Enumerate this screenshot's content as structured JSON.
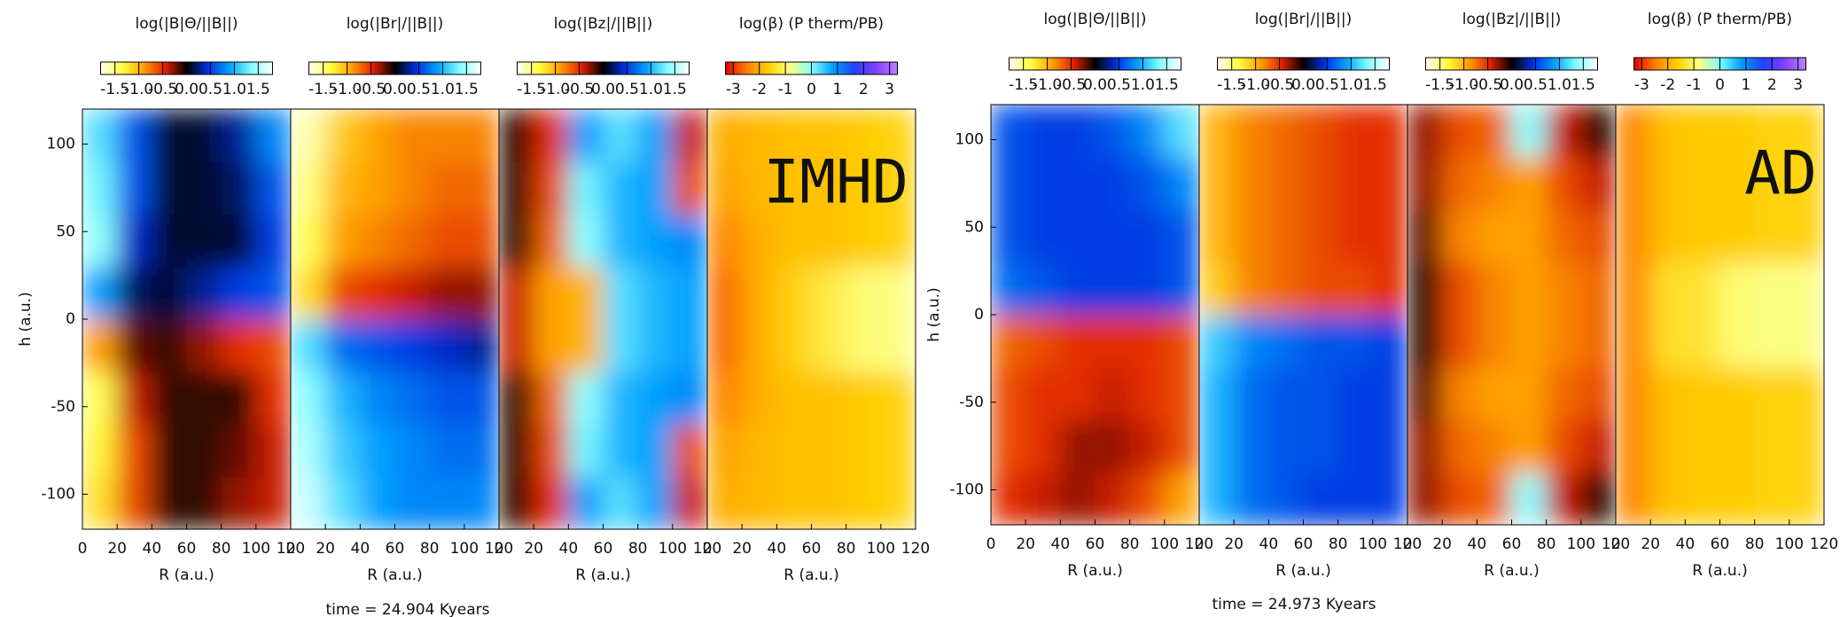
{
  "captions": [
    "time = 24.904 Kyears",
    "time = 24.973 Kyears"
  ],
  "chart_data": [
    {
      "type": "heatmap",
      "title": "log(|B|Θ/||B||)",
      "xlabel": "R (a.u.)",
      "ylabel": "h (a.u.)",
      "xbins": [
        0,
        20,
        40,
        60,
        80,
        100,
        120
      ],
      "ybins": [
        -120,
        -90,
        -60,
        -30,
        0,
        30,
        60,
        90,
        120
      ],
      "xlim": [
        0,
        120
      ],
      "ylim": [
        -120,
        120
      ],
      "xticks": [
        0,
        20,
        40,
        60,
        80,
        100,
        120
      ],
      "yticks": [
        -100,
        -50,
        0,
        50,
        100
      ],
      "clim": [
        -1.8,
        1.8
      ],
      "cticks": [
        -1.5,
        {
          "value": -1,
          "label": "-1.0"
        },
        -0.5,
        {
          "value": 0,
          "label": "0.0"
        },
        0.5,
        {
          "value": 1,
          "label": "1.0"
        },
        1.5
      ],
      "colormap": [
        "#ffffff",
        "#ffff40",
        "#ffa000",
        "#e02000",
        "#000000",
        "#0030e0",
        "#00a0ff",
        "#80ffff",
        "#ffffff"
      ],
      "values": [
        [
          -1.2,
          -0.6,
          -0.1,
          -0.1,
          -0.3,
          -0.4
        ],
        [
          -1.3,
          -0.6,
          -0.1,
          -0.1,
          -0.2,
          -0.4
        ],
        [
          -1.4,
          -0.4,
          -0.1,
          -0.1,
          -0.1,
          -0.5
        ],
        [
          -0.9,
          -0.2,
          -0.1,
          -0.3,
          -0.5,
          -0.6
        ],
        [
          0.9,
          0.2,
          0.1,
          0.3,
          0.5,
          0.6
        ],
        [
          1.4,
          0.4,
          0.1,
          0.1,
          0.1,
          0.5
        ],
        [
          1.3,
          0.6,
          0.1,
          0.1,
          0.2,
          0.6
        ],
        [
          1.2,
          0.6,
          0.1,
          0.1,
          0.3,
          0.8
        ]
      ]
    },
    {
      "type": "heatmap",
      "title": "log(|Br|/||B||)",
      "xlabel": "R (a.u.)",
      "xbins": [
        0,
        20,
        40,
        60,
        80,
        100,
        120
      ],
      "ybins": [
        -120,
        -90,
        -60,
        -30,
        0,
        30,
        60,
        90,
        120
      ],
      "xlim": [
        0,
        120
      ],
      "ylim": [
        -120,
        120
      ],
      "xticks": [
        0,
        20,
        40,
        60,
        80,
        100,
        120
      ],
      "clim": [
        -1.8,
        1.8
      ],
      "cticks": [
        -1.5,
        {
          "value": -1,
          "label": "-1.0"
        },
        -0.5,
        {
          "value": 0,
          "label": "0.0"
        },
        0.5,
        {
          "value": 1,
          "label": "1.0"
        },
        1.5
      ],
      "colormap": [
        "#ffffff",
        "#ffff40",
        "#ffa000",
        "#e02000",
        "#000000",
        "#0030e0",
        "#00a0ff",
        "#80ffff",
        "#ffffff"
      ],
      "values": [
        [
          1.6,
          1.2,
          0.9,
          0.8,
          0.8,
          0.8
        ],
        [
          1.5,
          1.1,
          0.9,
          0.8,
          0.7,
          0.7
        ],
        [
          1.4,
          1.0,
          0.8,
          0.7,
          0.6,
          0.6
        ],
        [
          1.2,
          0.7,
          0.6,
          0.5,
          0.4,
          0.3
        ],
        [
          -1.2,
          -0.6,
          -0.5,
          -0.4,
          -0.3,
          -0.3
        ],
        [
          -1.4,
          -0.9,
          -0.8,
          -0.7,
          -0.6,
          -0.6
        ],
        [
          -1.5,
          -1.0,
          -0.9,
          -0.8,
          -0.7,
          -0.7
        ],
        [
          -1.6,
          -1.1,
          -0.9,
          -0.8,
          -0.8,
          -0.8
        ]
      ]
    },
    {
      "type": "heatmap",
      "title": "log(|Bz|/||B||)",
      "xlabel": "R (a.u.)",
      "xbins": [
        0,
        20,
        40,
        60,
        80,
        100,
        120
      ],
      "ybins": [
        -120,
        -90,
        -60,
        -30,
        0,
        30,
        60,
        90,
        120
      ],
      "xlim": [
        0,
        120
      ],
      "ylim": [
        -120,
        120
      ],
      "xticks": [
        0,
        20,
        40,
        60,
        80,
        100,
        120
      ],
      "clim": [
        -1.8,
        1.8
      ],
      "cticks": [
        -1.5,
        {
          "value": -1,
          "label": "-1.0"
        },
        -0.5,
        {
          "value": 0,
          "label": "0.0"
        },
        0.5,
        {
          "value": 1,
          "label": "1.0"
        },
        1.5
      ],
      "colormap": [
        "#ffffff",
        "#ffff40",
        "#ffa000",
        "#e02000",
        "#000000",
        "#0030e0",
        "#00a0ff",
        "#80ffff",
        "#ffffff"
      ],
      "values": [
        [
          -0.1,
          -0.5,
          0.9,
          1.2,
          0.9,
          -0.4
        ],
        [
          -0.1,
          -0.6,
          1.3,
          1.0,
          0.9,
          -0.6
        ],
        [
          -0.1,
          -0.7,
          1.4,
          1.0,
          0.9,
          0.8
        ],
        [
          -0.4,
          -0.9,
          -1.0,
          1.2,
          1.0,
          0.9
        ],
        [
          -0.4,
          -0.9,
          -1.0,
          1.2,
          1.0,
          0.9
        ],
        [
          -0.1,
          -0.7,
          1.4,
          1.0,
          0.9,
          0.8
        ],
        [
          -0.1,
          -0.6,
          1.3,
          1.0,
          0.9,
          -0.6
        ],
        [
          -0.1,
          -0.5,
          0.9,
          1.2,
          0.9,
          -0.4
        ]
      ]
    },
    {
      "type": "heatmap",
      "title": "log(β) (P therm/PB)",
      "xlabel": "R (a.u.)",
      "annotation": "IMHD",
      "xbins": [
        0,
        20,
        40,
        60,
        80,
        100,
        120
      ],
      "ybins": [
        -120,
        -90,
        -60,
        -30,
        0,
        30,
        60,
        90,
        120
      ],
      "xlim": [
        0,
        120
      ],
      "ylim": [
        -120,
        120
      ],
      "xticks": [
        0,
        20,
        40,
        60,
        80,
        100,
        120
      ],
      "clim": [
        -3.3,
        3.3
      ],
      "cticks": [
        -3,
        -2,
        -1,
        0,
        1,
        2,
        3
      ],
      "colormap": [
        "#e00000",
        "#ff8000",
        "#ffd000",
        "#ffff80",
        "#80ffff",
        "#00a0ff",
        "#2040ff",
        "#8040ff",
        "#c080ff"
      ],
      "values": [
        [
          -2.0,
          -1.9,
          -1.8,
          -1.8,
          -1.7,
          -1.6
        ],
        [
          -2.1,
          -1.9,
          -1.8,
          -1.8,
          -1.7,
          -1.6
        ],
        [
          -2.4,
          -2.0,
          -1.8,
          -1.8,
          -1.7,
          -1.6
        ],
        [
          -2.6,
          -2.0,
          -1.6,
          -1.2,
          -0.9,
          -0.8
        ],
        [
          -2.6,
          -2.0,
          -1.6,
          -1.2,
          -0.9,
          -0.8
        ],
        [
          -2.4,
          -2.0,
          -1.8,
          -1.8,
          -1.7,
          -1.6
        ],
        [
          -2.1,
          -1.9,
          -1.8,
          -1.8,
          -1.7,
          -1.6
        ],
        [
          -2.0,
          -1.9,
          -1.8,
          -1.8,
          -1.7,
          -1.6
        ]
      ]
    },
    {
      "type": "heatmap",
      "title": "log(|B|Θ/||B||)",
      "xlabel": "R (a.u.)",
      "ylabel": "h (a.u.)",
      "xbins": [
        0,
        20,
        40,
        60,
        80,
        100,
        120
      ],
      "ybins": [
        -120,
        -90,
        -60,
        -30,
        0,
        30,
        60,
        90,
        120
      ],
      "xlim": [
        0,
        120
      ],
      "ylim": [
        -120,
        120
      ],
      "xticks": [
        0,
        20,
        40,
        60,
        80,
        100,
        120
      ],
      "yticks": [
        -100,
        -50,
        0,
        50,
        100
      ],
      "clim": [
        -1.8,
        1.8
      ],
      "cticks": [
        -1.5,
        {
          "value": -1,
          "label": "-1.0"
        },
        -0.5,
        {
          "value": 0,
          "label": "0.0"
        },
        0.5,
        {
          "value": 1,
          "label": "1.0"
        },
        1.5
      ],
      "colormap": [
        "#ffffff",
        "#ffff40",
        "#ffa000",
        "#e02000",
        "#000000",
        "#0030e0",
        "#00a0ff",
        "#80ffff",
        "#ffffff"
      ],
      "values": [
        [
          -0.5,
          -0.4,
          -0.3,
          -0.4,
          -0.6,
          -0.9
        ],
        [
          -0.6,
          -0.5,
          -0.3,
          -0.3,
          -0.4,
          -0.6
        ],
        [
          -0.6,
          -0.5,
          -0.5,
          -0.4,
          -0.5,
          -0.6
        ],
        [
          -0.7,
          -0.6,
          -0.5,
          -0.5,
          -0.5,
          -0.6
        ],
        [
          0.7,
          0.6,
          0.5,
          0.5,
          0.5,
          0.6
        ],
        [
          0.6,
          0.5,
          0.5,
          0.5,
          0.5,
          0.6
        ],
        [
          0.6,
          0.5,
          0.5,
          0.5,
          0.6,
          0.8
        ],
        [
          0.6,
          0.5,
          0.5,
          0.6,
          0.8,
          1.2
        ]
      ]
    },
    {
      "type": "heatmap",
      "title": "log(|Br|/||B||)",
      "xlabel": "R (a.u.)",
      "xbins": [
        0,
        20,
        40,
        60,
        80,
        100,
        120
      ],
      "ybins": [
        -120,
        -90,
        -60,
        -30,
        0,
        30,
        60,
        90,
        120
      ],
      "xlim": [
        0,
        120
      ],
      "ylim": [
        -120,
        120
      ],
      "xticks": [
        0,
        20,
        40,
        60,
        80,
        100,
        120
      ],
      "clim": [
        -1.8,
        1.8
      ],
      "cticks": [
        -1.5,
        {
          "value": -1,
          "label": "-1.0"
        },
        -0.5,
        {
          "value": 0,
          "label": "0.0"
        },
        0.5,
        {
          "value": 1,
          "label": "1.0"
        },
        1.5
      ],
      "colormap": [
        "#ffffff",
        "#ffff40",
        "#ffa000",
        "#e02000",
        "#000000",
        "#0030e0",
        "#00a0ff",
        "#80ffff",
        "#ffffff"
      ],
      "values": [
        [
          1.0,
          0.7,
          0.6,
          0.5,
          0.5,
          0.5
        ],
        [
          1.0,
          0.7,
          0.6,
          0.6,
          0.5,
          0.5
        ],
        [
          1.0,
          0.7,
          0.6,
          0.6,
          0.5,
          0.5
        ],
        [
          1.1,
          0.8,
          0.7,
          0.6,
          0.6,
          0.5
        ],
        [
          -1.1,
          -0.8,
          -0.7,
          -0.6,
          -0.6,
          -0.5
        ],
        [
          -1.0,
          -0.8,
          -0.7,
          -0.6,
          -0.5,
          -0.5
        ],
        [
          -1.0,
          -0.8,
          -0.7,
          -0.6,
          -0.5,
          -0.5
        ],
        [
          -1.0,
          -0.8,
          -0.7,
          -0.6,
          -0.5,
          -0.5
        ]
      ]
    },
    {
      "type": "heatmap",
      "title": "log(|Bz|/||B||)",
      "xlabel": "R (a.u.)",
      "xbins": [
        0,
        20,
        40,
        60,
        80,
        100,
        120
      ],
      "ybins": [
        -120,
        -90,
        -60,
        -30,
        0,
        30,
        60,
        90,
        120
      ],
      "xlim": [
        0,
        120
      ],
      "ylim": [
        -120,
        120
      ],
      "xticks": [
        0,
        20,
        40,
        60,
        80,
        100,
        120
      ],
      "clim": [
        -1.8,
        1.8
      ],
      "cticks": [
        -1.5,
        {
          "value": -1,
          "label": "-1.0"
        },
        -0.5,
        {
          "value": 0,
          "label": "0.0"
        },
        0.5,
        {
          "value": 1,
          "label": "1.0"
        },
        1.5
      ],
      "colormap": [
        "#ffffff",
        "#ffff40",
        "#ffa000",
        "#e02000",
        "#000000",
        "#0030e0",
        "#00a0ff",
        "#80ffff",
        "#ffffff"
      ],
      "values": [
        [
          -0.3,
          -0.6,
          -0.7,
          1.4,
          -0.4,
          -0.1
        ],
        [
          -0.3,
          -0.7,
          -0.8,
          -0.9,
          -0.6,
          -0.4
        ],
        [
          -0.2,
          -0.8,
          -0.9,
          -0.9,
          -0.7,
          -0.6
        ],
        [
          -0.1,
          -0.6,
          -0.8,
          -0.9,
          -0.8,
          -0.7
        ],
        [
          -0.1,
          -0.6,
          -0.8,
          -0.9,
          -0.8,
          -0.7
        ],
        [
          -0.2,
          -0.8,
          -0.9,
          -0.9,
          -0.7,
          -0.6
        ],
        [
          -0.3,
          -0.7,
          -0.8,
          -0.9,
          -0.6,
          -0.4
        ],
        [
          -0.3,
          -0.6,
          -0.7,
          1.4,
          -0.4,
          -0.1
        ]
      ]
    },
    {
      "type": "heatmap",
      "title": "log(β) (P therm/PB)",
      "xlabel": "R (a.u.)",
      "annotation": "AD",
      "xbins": [
        0,
        20,
        40,
        60,
        80,
        100,
        120
      ],
      "ybins": [
        -120,
        -90,
        -60,
        -30,
        0,
        30,
        60,
        90,
        120
      ],
      "xlim": [
        0,
        120
      ],
      "ylim": [
        -120,
        120
      ],
      "xticks": [
        0,
        20,
        40,
        60,
        80,
        100,
        120
      ],
      "clim": [
        -3.3,
        3.3
      ],
      "cticks": [
        -3,
        -2,
        -1,
        0,
        1,
        2,
        3
      ],
      "colormap": [
        "#e00000",
        "#ff8000",
        "#ffd000",
        "#ffff80",
        "#80ffff",
        "#00a0ff",
        "#2040ff",
        "#8040ff",
        "#c080ff"
      ],
      "values": [
        [
          -2.4,
          -1.8,
          -1.7,
          -1.7,
          -1.6,
          -1.6
        ],
        [
          -2.4,
          -1.8,
          -1.7,
          -1.7,
          -1.6,
          -1.6
        ],
        [
          -2.4,
          -1.8,
          -1.7,
          -1.7,
          -1.6,
          -1.6
        ],
        [
          -2.4,
          -1.4,
          -1.3,
          -0.9,
          -0.8,
          -0.8
        ],
        [
          -2.4,
          -1.4,
          -1.3,
          -0.9,
          -0.8,
          -0.8
        ],
        [
          -2.4,
          -1.8,
          -1.7,
          -1.7,
          -1.6,
          -1.6
        ],
        [
          -2.4,
          -1.8,
          -1.7,
          -1.7,
          -1.6,
          -1.6
        ],
        [
          -2.4,
          -1.8,
          -1.7,
          -1.7,
          -1.6,
          -1.6
        ]
      ]
    }
  ]
}
